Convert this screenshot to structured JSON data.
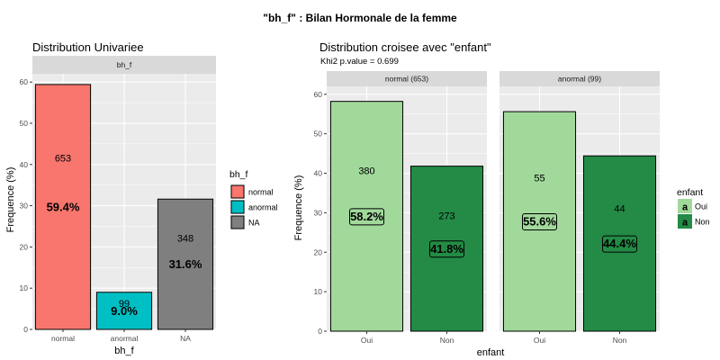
{
  "title": "\"bh_f\" : Bilan Hormonale de la femme",
  "colors": {
    "panel_bg": "#ebebeb",
    "grid": "#ffffff",
    "strip_bg": "#d9d9d9",
    "normal": "#f8766d",
    "anormal": "#00bfc4",
    "na": "#7f7f7f",
    "oui": "#a1d99b",
    "non": "#238b45"
  },
  "chart_data": [
    {
      "type": "bar",
      "title": "Distribution Univariee",
      "facet_label": "bh_f",
      "xlabel": "bh_f",
      "ylabel": "Frequence (%)",
      "ylim": [
        0,
        62
      ],
      "yticks": [
        0,
        10,
        20,
        30,
        40,
        50,
        60
      ],
      "categories": [
        "normal",
        "anormal",
        "NA"
      ],
      "values": [
        59.4,
        9.0,
        31.6
      ],
      "counts": [
        "653",
        "99",
        "348"
      ],
      "pct_labels": [
        "59.4%",
        "9.0%",
        "31.6%"
      ],
      "legend": {
        "title": "bh_f",
        "position": "right",
        "entries": [
          "normal",
          "anormal",
          "NA"
        ]
      }
    },
    {
      "type": "bar",
      "title": "Distribution croisee avec \"enfant\"",
      "subtitle": "Khi2 p.value = 0.699",
      "xlabel": "enfant",
      "ylabel": "Frequence (%)",
      "ylim": [
        0,
        62
      ],
      "yticks": [
        0,
        10,
        20,
        30,
        40,
        50,
        60
      ],
      "categories": [
        "Oui",
        "Non"
      ],
      "facets": [
        {
          "label": "normal (653)",
          "values": [
            58.2,
            41.8
          ],
          "counts": [
            "380",
            "273"
          ],
          "pct_labels": [
            "58.2%",
            "41.8%"
          ]
        },
        {
          "label": "anormal (99)",
          "values": [
            55.6,
            44.4
          ],
          "counts": [
            "55",
            "44"
          ],
          "pct_labels": [
            "55.6%",
            "44.4%"
          ]
        }
      ],
      "legend": {
        "title": "enfant",
        "position": "right",
        "key_glyph": "a",
        "entries": [
          "Oui",
          "Non"
        ]
      }
    }
  ]
}
